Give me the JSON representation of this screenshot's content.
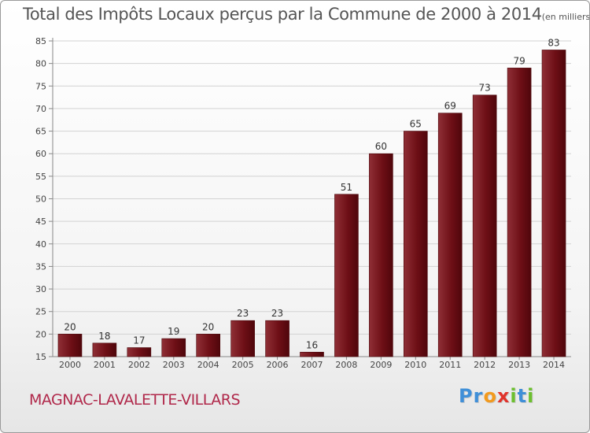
{
  "chart_data": {
    "type": "bar",
    "title": "Total des Impôts Locaux perçus par la Commune de 2000 à 2014",
    "unit_note": "(en milliers d'€)",
    "xlabel": "",
    "ylabel": "",
    "categories": [
      "2000",
      "2001",
      "2002",
      "2003",
      "2004",
      "2005",
      "2006",
      "2007",
      "2008",
      "2009",
      "2010",
      "2011",
      "2012",
      "2013",
      "2014"
    ],
    "values": [
      20,
      18,
      17,
      19,
      20,
      23,
      23,
      16,
      51,
      60,
      65,
      69,
      73,
      79,
      83
    ],
    "ylim": [
      15,
      85
    ],
    "yticks": [
      15,
      20,
      25,
      30,
      35,
      40,
      45,
      50,
      55,
      60,
      65,
      70,
      75,
      80,
      85
    ],
    "grid": true,
    "bar_color": "#6e0f16",
    "bar_color_light": "#8f2f36"
  },
  "footer": {
    "commune_name": "MAGNAC-LAVALETTE-VILLARS",
    "brand_letters": [
      {
        "ch": "P",
        "color": "#3f8fd8"
      },
      {
        "ch": "r",
        "color": "#3f8fd8"
      },
      {
        "ch": "o",
        "color": "#f29a1e"
      },
      {
        "ch": "x",
        "color": "#e0332b"
      },
      {
        "ch": "i",
        "color": "#6cbf2f"
      },
      {
        "ch": "t",
        "color": "#3f8fd8"
      },
      {
        "ch": "i",
        "color": "#6cbf2f"
      }
    ]
  }
}
